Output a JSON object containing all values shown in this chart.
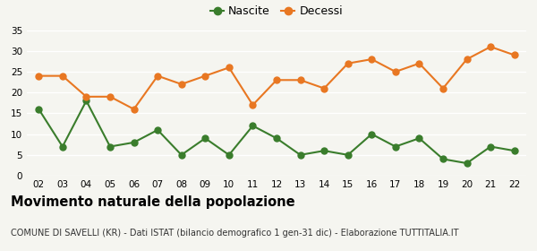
{
  "years": [
    "02",
    "03",
    "04",
    "05",
    "06",
    "07",
    "08",
    "09",
    "10",
    "11",
    "12",
    "13",
    "14",
    "15",
    "16",
    "17",
    "18",
    "19",
    "20",
    "21",
    "22"
  ],
  "nascite": [
    16,
    7,
    18,
    7,
    8,
    11,
    5,
    9,
    5,
    12,
    9,
    5,
    6,
    5,
    10,
    7,
    9,
    4,
    3,
    7,
    6
  ],
  "decessi": [
    24,
    24,
    19,
    19,
    16,
    24,
    22,
    24,
    26,
    17,
    23,
    23,
    21,
    27,
    28,
    25,
    27,
    21,
    28,
    31,
    29
  ],
  "nascite_color": "#3a7d2c",
  "decessi_color": "#e87722",
  "background_color": "#f5f5f0",
  "grid_color": "#ffffff",
  "title": "Movimento naturale della popolazione",
  "subtitle": "COMUNE DI SAVELLI (KR) - Dati ISTAT (bilancio demografico 1 gen-31 dic) - Elaborazione TUTTITALIA.IT",
  "legend_nascite": "Nascite",
  "legend_decessi": "Decessi",
  "ylim": [
    0,
    35
  ],
  "yticks": [
    0,
    5,
    10,
    15,
    20,
    25,
    30,
    35
  ],
  "marker_size": 5,
  "line_width": 1.5,
  "title_fontsize": 10.5,
  "subtitle_fontsize": 7.0,
  "legend_fontsize": 9,
  "tick_fontsize": 7.5
}
